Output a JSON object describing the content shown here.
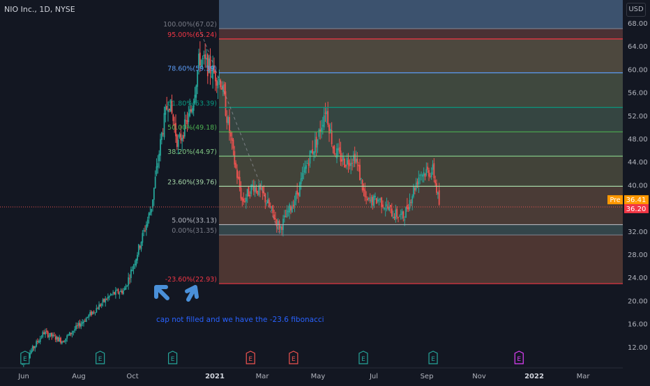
{
  "header": {
    "symbol_label": "NIO Inc., 1D, NYSE",
    "currency": "USD"
  },
  "colors": {
    "background": "#131722",
    "up": "#26a69a",
    "down": "#ef5350",
    "axis_text": "#b2b5be",
    "annotation": "#2962ff",
    "arrow": "#4a90d9"
  },
  "chart_data": {
    "type": "candlestick",
    "price_axis": {
      "min": 8,
      "max": 70,
      "ticks": [
        "12.00",
        "16.00",
        "20.00",
        "24.00",
        "28.00",
        "32.00",
        "36.00",
        "40.00",
        "44.00",
        "48.00",
        "52.00",
        "56.00",
        "60.00",
        "64.00",
        "68.00"
      ]
    },
    "time_axis_labels": [
      "Jun",
      "Aug",
      "Oct",
      "2021",
      "Mar",
      "May",
      "Jul",
      "Sep",
      "Nov",
      "2022",
      "Mar"
    ],
    "fib_levels": [
      {
        "label": "100.00%(67.02)",
        "price": 67.02,
        "color": "#787b86"
      },
      {
        "label": "95.00%(65.24)",
        "price": 65.24,
        "color": "#f23645"
      },
      {
        "label": "78.60%(59.39)",
        "price": 59.39,
        "color": "#5b9cf6"
      },
      {
        "label": "61.80%(53.39)",
        "price": 53.39,
        "color": "#089981"
      },
      {
        "label": "50.00%(49.18)",
        "price": 49.18,
        "color": "#4caf50"
      },
      {
        "label": "38.20%(44.97)",
        "price": 44.97,
        "color": "#81c784"
      },
      {
        "label": "23.60%(39.76)",
        "price": 39.76,
        "color": "#a5d6a7"
      },
      {
        "label": "5.00%(33.13)",
        "price": 33.13,
        "color": "#b2b5be"
      },
      {
        "label": "0.00%(31.35)",
        "price": 31.35,
        "color": "#787b86"
      },
      {
        "label": "-23.60%(22.93)",
        "price": 22.93,
        "color": "#f23645"
      }
    ],
    "price_tags": [
      {
        "prefix": "Pre",
        "value": "36.41",
        "price": 36.41,
        "color": "#ff9800"
      },
      {
        "prefix": "",
        "value": "36.20",
        "price": 36.2,
        "color": "#f23645"
      }
    ],
    "anchors": [
      {
        "month": 0,
        "price": 9
      },
      {
        "month": 0.8,
        "price": 14.5
      },
      {
        "month": 1.5,
        "price": 13
      },
      {
        "month": 2.5,
        "price": 17.5
      },
      {
        "month": 3.3,
        "price": 21
      },
      {
        "month": 3.8,
        "price": 21.8
      },
      {
        "month": 4.2,
        "price": 27
      },
      {
        "month": 4.8,
        "price": 36
      },
      {
        "month": 5.2,
        "price": 49
      },
      {
        "month": 5.45,
        "price": 55
      },
      {
        "month": 5.8,
        "price": 47
      },
      {
        "month": 6.3,
        "price": 53
      },
      {
        "month": 6.6,
        "price": 62
      },
      {
        "month": 7.0,
        "price": 60
      },
      {
        "month": 7.4,
        "price": 58
      },
      {
        "month": 7.9,
        "price": 44
      },
      {
        "month": 8.2,
        "price": 37
      },
      {
        "month": 8.6,
        "price": 40
      },
      {
        "month": 9.0,
        "price": 38
      },
      {
        "month": 9.6,
        "price": 32.5
      },
      {
        "month": 10.2,
        "price": 38
      },
      {
        "month": 10.7,
        "price": 45
      },
      {
        "month": 11.0,
        "price": 48
      },
      {
        "month": 11.3,
        "price": 53.5
      },
      {
        "month": 11.6,
        "price": 46
      },
      {
        "month": 12.0,
        "price": 44
      },
      {
        "month": 12.4,
        "price": 45
      },
      {
        "month": 12.8,
        "price": 37
      },
      {
        "month": 13.3,
        "price": 37.5
      },
      {
        "month": 13.8,
        "price": 35
      },
      {
        "month": 14.2,
        "price": 34.5
      },
      {
        "month": 14.8,
        "price": 42
      },
      {
        "month": 15.3,
        "price": 42.5
      },
      {
        "month": 15.55,
        "price": 36
      }
    ],
    "earnings_markers": [
      {
        "label": "E",
        "month": 0.1,
        "color": "#26a69a"
      },
      {
        "label": "E",
        "month": 2.9,
        "color": "#26a69a"
      },
      {
        "label": "E",
        "month": 5.6,
        "color": "#26a69a"
      },
      {
        "label": "E",
        "month": 8.5,
        "color": "#ef5350"
      },
      {
        "label": "E",
        "month": 10.1,
        "color": "#ef5350"
      },
      {
        "label": "E",
        "month": 12.7,
        "color": "#26a69a"
      },
      {
        "label": "E",
        "month": 15.3,
        "color": "#26a69a"
      },
      {
        "label": "E",
        "month": 18.5,
        "color": "#e040fb"
      }
    ],
    "annotation": "cap not filled and we have the -23.6 fibonacci"
  }
}
